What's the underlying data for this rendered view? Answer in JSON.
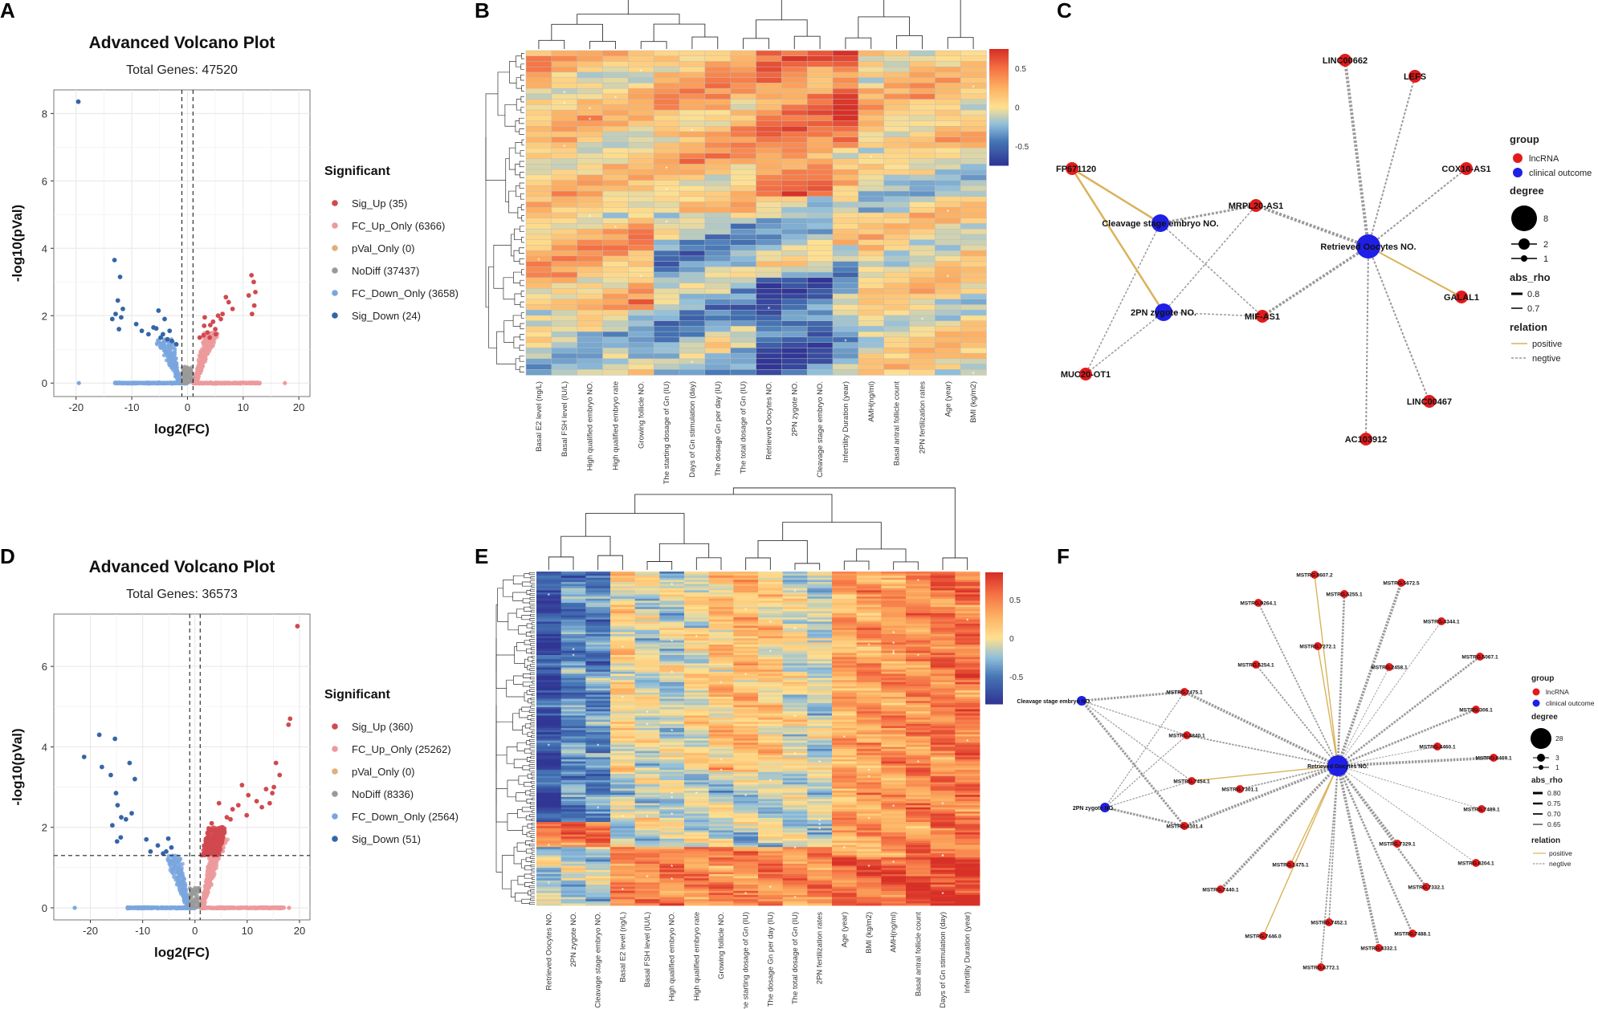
{
  "panel_letters": [
    "A",
    "B",
    "C",
    "D",
    "E",
    "F"
  ],
  "colors": {
    "sig_up": "#d0494f",
    "fc_up": "#ec9a9c",
    "pval": "#e0b07a",
    "nodiff": "#9a9a9a",
    "fc_down": "#7aa6df",
    "sig_down": "#3565a8",
    "lncrna": "#e31a1c",
    "clinical": "#1f1fe6",
    "positive": "#d9b35a",
    "negative": "#9a9a9a"
  },
  "chart_data": [
    {
      "panel": "A",
      "type": "scatter",
      "title": "Advanced Volcano Plot",
      "subtitle": "Total Genes: 47520",
      "xlabel": "log2(FC)",
      "ylabel": "-log10(pVal)",
      "xlim": [
        -24,
        22
      ],
      "ylim": [
        -0.4,
        8.7
      ],
      "xticks": [
        -20,
        -10,
        0,
        10,
        20
      ],
      "yticks": [
        0,
        2,
        4,
        6,
        8
      ],
      "vlines": [
        -1,
        1
      ],
      "hline": null,
      "legend_title": "Significant",
      "legend": [
        "Sig_Up (35)",
        "FC_Up_Only (6366)",
        "pVal_Only (0)",
        "NoDiff (37437)",
        "FC_Down_Only (3658)",
        "Sig_Down (24)"
      ],
      "sig_up_points": [
        [
          11.5,
          3.2
        ],
        [
          11.9,
          3.0
        ],
        [
          12.2,
          2.7
        ],
        [
          11.0,
          2.6
        ],
        [
          12.0,
          2.3
        ],
        [
          7.4,
          2.4
        ],
        [
          6.9,
          2.55
        ],
        [
          8.1,
          2.2
        ],
        [
          5.5,
          2.0
        ],
        [
          6.3,
          2.05
        ],
        [
          3.1,
          1.95
        ],
        [
          4.1,
          1.72
        ],
        [
          5.0,
          1.6
        ],
        [
          4.6,
          1.82
        ],
        [
          3.6,
          1.5
        ],
        [
          2.9,
          1.42
        ],
        [
          2.2,
          1.35
        ],
        [
          4.0,
          1.35
        ],
        [
          5.1,
          1.45
        ],
        [
          11.6,
          2.05
        ],
        [
          3.0,
          1.7
        ],
        [
          6.0,
          1.9
        ]
      ],
      "sig_down_points": [
        [
          -19.6,
          8.35
        ],
        [
          -13.1,
          3.65
        ],
        [
          -12.1,
          3.15
        ],
        [
          -12.5,
          2.45
        ],
        [
          -11.6,
          2.2
        ],
        [
          -12.9,
          2.05
        ],
        [
          -11.9,
          1.95
        ],
        [
          -12.3,
          1.6
        ],
        [
          -9.2,
          1.75
        ],
        [
          -8.2,
          1.55
        ],
        [
          -7.0,
          1.45
        ],
        [
          -5.2,
          2.15
        ],
        [
          -4.1,
          1.9
        ],
        [
          -5.6,
          1.62
        ],
        [
          -4.4,
          1.45
        ],
        [
          -3.6,
          1.3
        ],
        [
          -2.8,
          1.25
        ],
        [
          -2.0,
          1.15
        ],
        [
          -4.8,
          1.35
        ],
        [
          -3.2,
          1.55
        ],
        [
          -13.5,
          1.9
        ],
        [
          -6.1,
          1.65
        ]
      ]
    },
    {
      "panel": "D",
      "type": "scatter",
      "title": "Advanced Volcano Plot",
      "subtitle": "Total Genes: 36573",
      "xlabel": "log2(FC)",
      "ylabel": "-log10(pVal)",
      "xlim": [
        -27,
        22
      ],
      "ylim": [
        -0.3,
        7.3
      ],
      "xticks": [
        -20,
        -10,
        0,
        10,
        20
      ],
      "yticks": [
        0,
        2,
        4,
        6
      ],
      "vlines": [
        -1,
        1
      ],
      "hline": 1.3,
      "legend_title": "Significant",
      "legend": [
        "Sig_Up (360)",
        "FC_Up_Only (25262)",
        "pVal_Only (0)",
        "NoDiff (8336)",
        "FC_Down_Only (2564)",
        "Sig_Down (51)"
      ],
      "sig_up_points": [
        [
          19.6,
          7.0
        ],
        [
          18.2,
          4.7
        ],
        [
          17.9,
          4.55
        ],
        [
          15.5,
          3.6
        ],
        [
          16.2,
          3.3
        ],
        [
          15.1,
          3.0
        ],
        [
          13.6,
          2.95
        ],
        [
          14.3,
          2.6
        ],
        [
          12.8,
          2.5
        ],
        [
          9.0,
          3.05
        ],
        [
          10.2,
          2.8
        ],
        [
          8.3,
          2.55
        ],
        [
          7.2,
          2.45
        ],
        [
          6.1,
          2.25
        ],
        [
          4.6,
          2.6
        ],
        [
          3.2,
          2.1
        ],
        [
          4.1,
          1.9
        ],
        [
          2.5,
          1.7
        ],
        [
          3.0,
          1.5
        ],
        [
          5.2,
          2.0
        ],
        [
          6.8,
          2.2
        ],
        [
          9.9,
          2.3
        ],
        [
          11.8,
          2.65
        ],
        [
          14.8,
          2.85
        ]
      ],
      "sig_down_points": [
        [
          -21.2,
          3.75
        ],
        [
          -18.3,
          4.3
        ],
        [
          -15.3,
          4.2
        ],
        [
          -17.8,
          3.5
        ],
        [
          -12.5,
          3.6
        ],
        [
          -16.1,
          3.3
        ],
        [
          -15.1,
          2.85
        ],
        [
          -14.8,
          2.55
        ],
        [
          -14.1,
          2.25
        ],
        [
          -13.2,
          2.2
        ],
        [
          -15.8,
          2.05
        ],
        [
          -14.2,
          1.75
        ],
        [
          -12.1,
          2.35
        ],
        [
          -11.5,
          3.2
        ],
        [
          -9.3,
          1.7
        ],
        [
          -8.5,
          1.4
        ],
        [
          -7.1,
          1.55
        ],
        [
          -6.1,
          1.35
        ],
        [
          -5.5,
          1.4
        ],
        [
          -4.5,
          1.5
        ],
        [
          -5.1,
          1.72
        ],
        [
          -14.9,
          1.65
        ]
      ]
    },
    {
      "panel": "B",
      "type": "heatmap",
      "n_rows": 60,
      "columns": [
        "Basal E2 level (ng/L)",
        "Basal FSH level (IU/L)",
        "High qualified embryo NO.",
        "High qualified embryo rate",
        "Growing follicle NO.",
        "The starting dosage of Gn (IU)",
        "Days of Gn stimulation (day)",
        "The dosage Gn per day (IU)",
        "The total dosage of Gn (IU)",
        "Retrieved Oocytes NO.",
        "2PN zygote NO.",
        "Cleavage stage embryo NO.",
        "Infertility Duration (year)",
        "AMH(ng/ml)",
        "Basal antral follicle count",
        "2PN fertilization rates",
        "Age (year)",
        "BMI (kg/m2)"
      ],
      "colorbar_ticks": [
        "0.5",
        "0",
        "-0.5"
      ],
      "colorbar_values": [
        0.5,
        0,
        -0.5
      ],
      "colorbar_range": [
        -0.75,
        0.75
      ]
    },
    {
      "panel": "E",
      "type": "heatmap",
      "n_rows": 160,
      "columns": [
        "Retrieved Oocytes NO.",
        "2PN zygote NO.",
        "Cleavage stage embryo NO.",
        "Basal E2 level (ng/L)",
        "Basal FSH level (IU/L)",
        "High qualified embryo NO.",
        "High qualified embryo rate",
        "Growing follicle NO.",
        "The starting dosage of Gn (IU)",
        "The dosage Gn per day (IU)",
        "The total dosage of Gn (IU)",
        "2PN fertilization rates",
        "Age (year)",
        "BMI (kg/m2)",
        "AMH(ng/ml)",
        "Basal antral follicle count",
        "Days of Gn stimulation (day)",
        "Infertility Duration (year)"
      ],
      "colorbar_ticks": [
        "0.5",
        "0",
        "-0.5"
      ],
      "colorbar_values": [
        0.5,
        0,
        -0.5
      ],
      "colorbar_range": [
        -0.85,
        0.85
      ]
    }
  ],
  "networkC": {
    "legend": {
      "group_title": "group",
      "groups": [
        "lncRNA",
        "clinical outcome"
      ],
      "degree_title": "degree",
      "degrees": [
        "8",
        "2",
        "1"
      ],
      "rho_title": "abs_rho",
      "rhos": [
        "0.8",
        "0.7"
      ],
      "relation_title": "relation",
      "relations": [
        "positive",
        "negtive"
      ]
    },
    "nodes": [
      {
        "id": "LINC00662",
        "group": "lncRNA"
      },
      {
        "id": "LEFS",
        "group": "lncRNA"
      },
      {
        "id": "FP671120",
        "group": "lncRNA"
      },
      {
        "id": "COX10-AS1",
        "group": "lncRNA"
      },
      {
        "id": "MRPL20-AS1",
        "group": "lncRNA"
      },
      {
        "id": "Cleavage stage embryo NO.",
        "group": "clinical outcome"
      },
      {
        "id": "Retrieved Oocytes NO.",
        "group": "clinical outcome"
      },
      {
        "id": "GALAL1",
        "group": "lncRNA"
      },
      {
        "id": "2PN zygote NO.",
        "group": "clinical outcome"
      },
      {
        "id": "MIF-AS1",
        "group": "lncRNA"
      },
      {
        "id": "MUC20-OT1",
        "group": "lncRNA"
      },
      {
        "id": "LINC00467",
        "group": "lncRNA"
      },
      {
        "id": "AC103912",
        "group": "lncRNA"
      }
    ]
  },
  "networkF": {
    "legend": {
      "group_title": "group",
      "groups": [
        "lncRNA",
        "clinical outcome"
      ],
      "degree_title": "degree",
      "degrees": [
        "28",
        "3",
        "1"
      ],
      "rho_title": "abs_rho",
      "rhos": [
        "0.80",
        "0.75",
        "0.70",
        "0.65"
      ],
      "relation_title": "relation",
      "relations": [
        "positive",
        "negtive"
      ]
    },
    "hub": "Retrieved Oocytes NO.",
    "clinical": [
      "Cleavage stage embryo NO.",
      "2PN zygote NO."
    ],
    "nodes": [
      "MSTRG.8607.2",
      "MSTRG.5672.5",
      "MSTRG.5255.1",
      "MSTRG.9264.1",
      "MSTRG.4344.1",
      "MSTRG.7272.1",
      "MSTRG.5067.1",
      "MSTRG.5254.1",
      "MSTRG.2458.1",
      "MSTRG.7475.1",
      "MSTRG.306.1",
      "MSTRG.4840.1",
      "MSTRG.4460.1",
      "MSTRG.8469.1",
      "MSTRG.7454.1",
      "MSTRG.7301.1",
      "MSTRG.7489.1",
      "MSTRG.4101.4",
      "MSTRG.7329.1",
      "MSTRG.1475.1",
      "MSTRG.8204.1",
      "MSTRG.7440.1",
      "MSTRG.7332.1",
      "MSTRG.7452.1",
      "MSTRG.7446.0",
      "MSTRG.4332.1",
      "MSTRG.7488.1",
      "MSTRG.6772.1"
    ]
  }
}
